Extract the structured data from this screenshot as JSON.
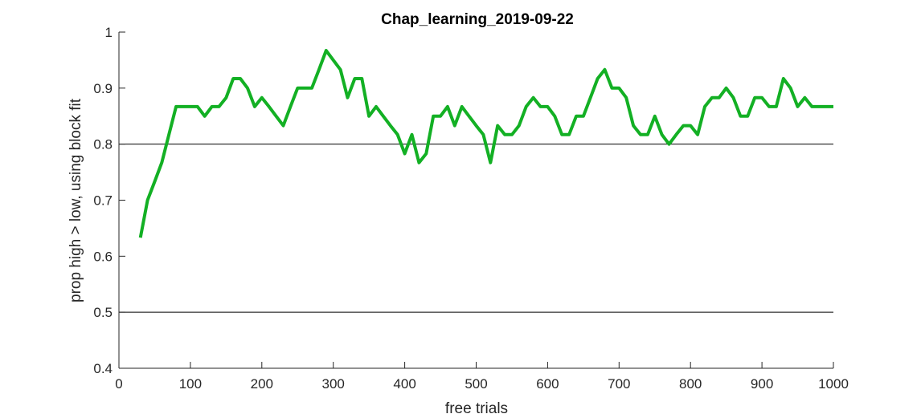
{
  "chart_data": {
    "type": "line",
    "title": "Chap_learning_2019-09-22",
    "xlabel": "free trials",
    "ylabel": "prop high > low, using block fit",
    "xlim": [
      0,
      1000
    ],
    "ylim": [
      0.4,
      1
    ],
    "xticks": [
      0,
      100,
      200,
      300,
      400,
      500,
      600,
      700,
      800,
      900,
      1000
    ],
    "xtick_labels": [
      "0",
      "100",
      "200",
      "300",
      "400",
      "500",
      "600",
      "700",
      "800",
      "900",
      "1000"
    ],
    "yticks": [
      0.4,
      0.5,
      0.6,
      0.7,
      0.8,
      0.9,
      1
    ],
    "ytick_labels": [
      "0.4",
      "0.5",
      "0.6",
      "0.7",
      "0.8",
      "0.9",
      "1"
    ],
    "grid": false,
    "reference_lines": [
      0.5,
      0.8
    ],
    "series": [
      {
        "color": "#13b024",
        "x": [
          30,
          40,
          50,
          60,
          70,
          80,
          90,
          100,
          110,
          120,
          130,
          140,
          150,
          160,
          170,
          180,
          190,
          200,
          210,
          220,
          230,
          240,
          250,
          260,
          270,
          280,
          290,
          300,
          310,
          320,
          330,
          340,
          350,
          360,
          370,
          380,
          390,
          400,
          410,
          420,
          430,
          440,
          450,
          460,
          470,
          480,
          490,
          500,
          510,
          520,
          530,
          540,
          550,
          560,
          570,
          580,
          590,
          600,
          610,
          620,
          630,
          640,
          650,
          660,
          670,
          680,
          690,
          700,
          710,
          720,
          730,
          740,
          750,
          760,
          770,
          780,
          790,
          800,
          810,
          820,
          830,
          840,
          850,
          860,
          870,
          880,
          890,
          900,
          910,
          920,
          930,
          940,
          950,
          960,
          970,
          980,
          990,
          1000
        ],
        "y": [
          0.633,
          0.7,
          0.733,
          0.767,
          0.817,
          0.867,
          0.867,
          0.867,
          0.867,
          0.85,
          0.867,
          0.867,
          0.883,
          0.917,
          0.917,
          0.9,
          0.867,
          0.883,
          0.867,
          0.85,
          0.833,
          0.867,
          0.9,
          0.9,
          0.9,
          0.933,
          0.967,
          0.95,
          0.933,
          0.883,
          0.917,
          0.917,
          0.85,
          0.867,
          0.85,
          0.833,
          0.817,
          0.783,
          0.817,
          0.767,
          0.783,
          0.85,
          0.85,
          0.867,
          0.833,
          0.867,
          0.85,
          0.833,
          0.817,
          0.767,
          0.833,
          0.817,
          0.817,
          0.833,
          0.867,
          0.883,
          0.867,
          0.867,
          0.85,
          0.817,
          0.817,
          0.85,
          0.85,
          0.883,
          0.917,
          0.933,
          0.9,
          0.9,
          0.883,
          0.833,
          0.817,
          0.817,
          0.85,
          0.817,
          0.8,
          0.817,
          0.833,
          0.833,
          0.817,
          0.867,
          0.883,
          0.883,
          0.9,
          0.883,
          0.85,
          0.85,
          0.883,
          0.883,
          0.867,
          0.867,
          0.917,
          0.9,
          0.867,
          0.883,
          0.867,
          0.867,
          0.867,
          0.867
        ]
      }
    ]
  }
}
